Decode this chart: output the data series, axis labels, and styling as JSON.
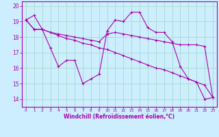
{
  "xlabel": "Windchill (Refroidissement éolien,°C)",
  "background_color": "#cceeff",
  "grid_color": "#aaddcc",
  "line_color": "#aa00aa",
  "ylim": [
    13.5,
    20.3
  ],
  "xlim": [
    -0.5,
    23.5
  ],
  "yticks": [
    14,
    15,
    16,
    17,
    18,
    19,
    20
  ],
  "xtick_labels": [
    "0",
    "1",
    "2",
    "3",
    "4",
    "5",
    "6",
    "7",
    "8",
    "9",
    "10",
    "11",
    "12",
    "13",
    "14",
    "15",
    "16",
    "17",
    "18",
    "19",
    "20",
    "21",
    "22",
    "23"
  ],
  "series": [
    [
      19.1,
      19.4,
      18.5,
      17.3,
      16.1,
      16.5,
      16.5,
      15.0,
      15.3,
      15.6,
      18.4,
      19.1,
      19.0,
      19.6,
      19.6,
      18.6,
      18.3,
      18.3,
      17.7,
      16.1,
      15.3,
      15.1,
      14.0,
      14.1
    ],
    [
      19.1,
      18.5,
      18.5,
      18.3,
      18.1,
      17.9,
      17.8,
      17.6,
      17.5,
      17.3,
      17.2,
      17.0,
      16.8,
      16.6,
      16.4,
      16.2,
      16.0,
      15.9,
      15.7,
      15.5,
      15.3,
      15.1,
      14.9,
      14.1
    ],
    [
      19.1,
      18.5,
      18.5,
      18.3,
      18.2,
      18.1,
      18.0,
      17.9,
      17.8,
      17.7,
      18.2,
      18.3,
      18.2,
      18.1,
      18.0,
      17.9,
      17.8,
      17.7,
      17.6,
      17.5,
      17.5,
      17.5,
      17.4,
      14.1
    ]
  ]
}
